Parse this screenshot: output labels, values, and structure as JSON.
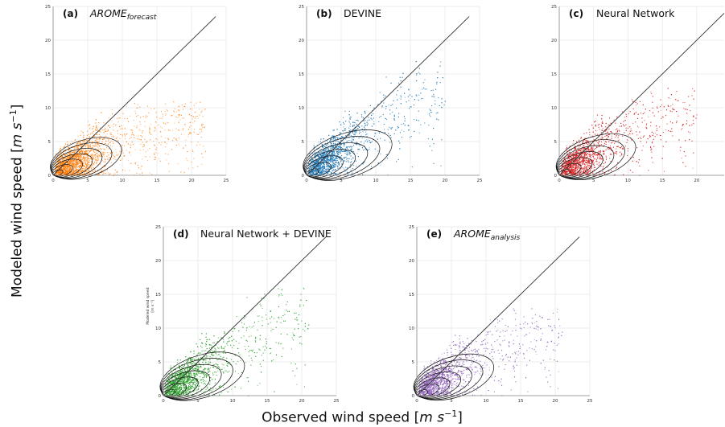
{
  "figure": {
    "ylabel_prefix": "Modeled wind speed [",
    "ylabel_unit": "m s",
    "ylabel_exp": "−1",
    "ylabel_suffix": "]",
    "xlabel_prefix": "Observed wind speed [",
    "xlabel_unit": "m s",
    "xlabel_exp": "−1",
    "xlabel_suffix": "]"
  },
  "chart_data": [
    {
      "type": "scatter",
      "panel": "(a)",
      "title_main": "AROME",
      "title_sub": "forecast",
      "color": "#ff7f0e",
      "xticks": [
        "0",
        "5",
        "10",
        "15",
        "20",
        "25"
      ],
      "yticks": [
        "0",
        "5",
        "10",
        "15",
        "20",
        "25"
      ],
      "xlim": [
        0,
        25
      ],
      "ylim": [
        0,
        25
      ],
      "grid": true,
      "one_to_one_line": [
        0,
        23.5
      ],
      "scatter_spread": {
        "x_max": 22,
        "y_center_slope": 0.45,
        "y_max": 11
      }
    },
    {
      "type": "scatter",
      "panel": "(b)",
      "title_main": "DEVINE",
      "title_sub": "",
      "color": "#1f77b4",
      "xticks": [
        "0",
        "5",
        "10",
        "15",
        "20",
        "25"
      ],
      "yticks": [
        "0",
        "5",
        "10",
        "15",
        "20",
        "25"
      ],
      "xlim": [
        0,
        25
      ],
      "ylim": [
        0,
        25
      ],
      "grid": true,
      "one_to_one_line": [
        0,
        23.5
      ],
      "scatter_spread": {
        "x_max": 20,
        "y_center_slope": 0.65,
        "y_max": 17
      }
    },
    {
      "type": "scatter",
      "panel": "(c)",
      "title_main": "Neural Network",
      "title_sub": "",
      "color": "#d62728",
      "xticks": [
        "0",
        "5",
        "10",
        "15",
        "20"
      ],
      "yticks": [
        "0",
        "5",
        "10",
        "15",
        "20",
        "25"
      ],
      "xlim": [
        0,
        24
      ],
      "ylim": [
        0,
        25
      ],
      "grid": true,
      "one_to_one_line": [
        0,
        24
      ],
      "scatter_spread": {
        "x_max": 20,
        "y_center_slope": 0.55,
        "y_max": 13
      }
    },
    {
      "type": "scatter",
      "panel": "(d)",
      "title_main": "Neural Network + DEVINE",
      "title_sub": "",
      "color": "#2ca02c",
      "ylabel_small": "Modeled wind speed",
      "ylabel_small_unit": "[m s⁻¹]",
      "xticks": [
        "0",
        "5",
        "10",
        "15",
        "20",
        "25"
      ],
      "yticks": [
        "0",
        "5",
        "10",
        "15",
        "20",
        "25"
      ],
      "xlim": [
        0,
        25
      ],
      "ylim": [
        0,
        25
      ],
      "grid": true,
      "one_to_one_line": [
        0,
        23.5
      ],
      "scatter_spread": {
        "x_max": 21,
        "y_center_slope": 0.6,
        "y_max": 16
      }
    },
    {
      "type": "scatter",
      "panel": "(e)",
      "title_main": "AROME",
      "title_sub": "analysis",
      "color": "#9467bd",
      "xticks": [
        "0",
        "5",
        "10",
        "15",
        "20",
        "25"
      ],
      "yticks": [
        "0",
        "5",
        "10",
        "15",
        "20",
        "25"
      ],
      "xlim": [
        0,
        25
      ],
      "ylim": [
        0,
        25
      ],
      "grid": true,
      "one_to_one_line": [
        0,
        23.5
      ],
      "scatter_spread": {
        "x_max": 21,
        "y_center_slope": 0.55,
        "y_max": 13
      }
    }
  ]
}
